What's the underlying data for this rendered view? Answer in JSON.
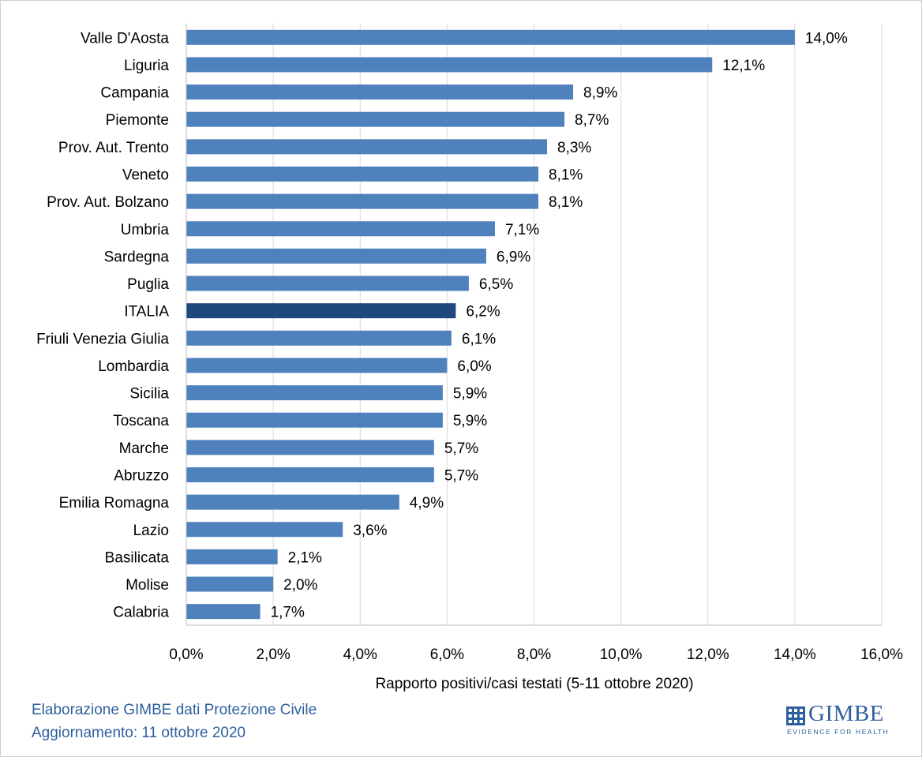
{
  "chart_data": {
    "type": "bar",
    "orientation": "horizontal",
    "categories": [
      "Valle D'Aosta",
      "Liguria",
      "Campania",
      "Piemonte",
      "Prov. Aut. Trento",
      "Veneto",
      "Prov. Aut. Bolzano",
      "Umbria",
      "Sardegna",
      "Puglia",
      "ITALIA",
      "Friuli Venezia Giulia",
      "Lombardia",
      "Sicilia",
      "Toscana",
      "Marche",
      "Abruzzo",
      "Emilia Romagna",
      "Lazio",
      "Basilicata",
      "Molise",
      "Calabria"
    ],
    "values": [
      14.0,
      12.1,
      8.9,
      8.7,
      8.3,
      8.1,
      8.1,
      7.1,
      6.9,
      6.5,
      6.2,
      6.1,
      6.0,
      5.9,
      5.9,
      5.7,
      5.7,
      4.9,
      3.6,
      2.1,
      2.0,
      1.7
    ],
    "data_labels": [
      "14,0%",
      "12,1%",
      "8,9%",
      "8,7%",
      "8,3%",
      "8,1%",
      "8,1%",
      "7,1%",
      "6,9%",
      "6,5%",
      "6,2%",
      "6,1%",
      "6,0%",
      "5,9%",
      "5,9%",
      "5,7%",
      "5,7%",
      "4,9%",
      "3,6%",
      "2,1%",
      "2,0%",
      "1,7%"
    ],
    "highlight_category": "ITALIA",
    "xlim": [
      0,
      16
    ],
    "x_ticks": [
      0,
      2,
      4,
      6,
      8,
      10,
      12,
      14,
      16
    ],
    "x_tick_labels": [
      "0,0%",
      "2,0%",
      "4,0%",
      "6,0%",
      "8,0%",
      "10,0%",
      "12,0%",
      "14,0%",
      "16,0%"
    ],
    "xlabel": "Rapporto positivi/casi testati (5-11 ottobre 2020)",
    "ylabel": "",
    "title": "",
    "grid": "vertical",
    "legend": "none",
    "colors": {
      "bar": "#4f81bd",
      "highlight": "#1f497d",
      "grid": "#d9d9d9",
      "text": "#000000"
    }
  },
  "footer": {
    "source": "Elaborazione GIMBE dati Protezione Civile",
    "updated": "Aggiornamento: 11 ottobre 2020"
  },
  "logo": {
    "name": "GIMBE",
    "tagline": "EVIDENCE FOR HEALTH",
    "icon": "grid-square-icon"
  }
}
